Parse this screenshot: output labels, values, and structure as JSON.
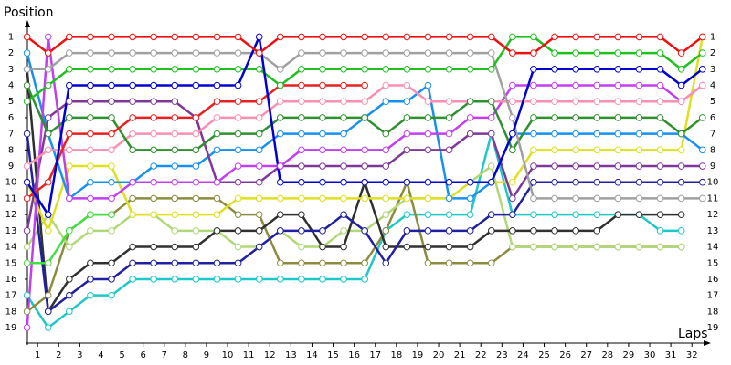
{
  "chart_data": {
    "type": "line",
    "y_label": "Position",
    "x_label": "Laps",
    "x": [
      0,
      1,
      2,
      3,
      4,
      5,
      6,
      7,
      8,
      9,
      10,
      11,
      12,
      13,
      14,
      15,
      16,
      17,
      18,
      19,
      20,
      21,
      22,
      23,
      24,
      25,
      26,
      27,
      28,
      29,
      30,
      31,
      32
    ],
    "xlim": [
      -0.2,
      32.4
    ],
    "ylim": [
      0.3,
      19.9
    ],
    "y_inverted": true,
    "xticks": [
      {
        "value": 0.5,
        "label": "1"
      },
      {
        "value": 1.5,
        "label": "2"
      },
      {
        "value": 2.5,
        "label": "3"
      },
      {
        "value": 3.5,
        "label": "4"
      },
      {
        "value": 4.5,
        "label": "5"
      },
      {
        "value": 5.5,
        "label": "6"
      },
      {
        "value": 6.5,
        "label": "7"
      },
      {
        "value": 7.5,
        "label": "8"
      },
      {
        "value": 8.5,
        "label": "9"
      },
      {
        "value": 9.5,
        "label": "10"
      },
      {
        "value": 10.5,
        "label": "11"
      },
      {
        "value": 11.5,
        "label": "12"
      },
      {
        "value": 12.5,
        "label": "13"
      },
      {
        "value": 13.5,
        "label": "14"
      },
      {
        "value": 14.5,
        "label": "15"
      },
      {
        "value": 15.5,
        "label": "16"
      },
      {
        "value": 16.5,
        "label": "17"
      },
      {
        "value": 17.5,
        "label": "18"
      },
      {
        "value": 18.5,
        "label": "19"
      },
      {
        "value": 19.5,
        "label": "20"
      },
      {
        "value": 20.5,
        "label": "21"
      },
      {
        "value": 21.5,
        "label": "22"
      },
      {
        "value": 22.5,
        "label": "23"
      },
      {
        "value": 23.5,
        "label": "24"
      },
      {
        "value": 24.5,
        "label": "25"
      },
      {
        "value": 25.5,
        "label": "26"
      },
      {
        "value": 26.5,
        "label": "27"
      },
      {
        "value": 27.5,
        "label": "28"
      },
      {
        "value": 28.5,
        "label": "29"
      },
      {
        "value": 29.5,
        "label": "30"
      },
      {
        "value": 30.5,
        "label": "31"
      },
      {
        "value": 31.5,
        "label": "32"
      }
    ],
    "yticks": [
      1,
      2,
      3,
      4,
      5,
      6,
      7,
      8,
      9,
      10,
      11,
      12,
      13,
      14,
      15,
      16,
      17,
      18,
      19
    ],
    "series": [
      {
        "color": "#1fc8c8",
        "values": [
          17,
          19,
          18,
          17,
          17,
          16,
          16,
          16,
          16,
          16,
          16,
          16,
          16,
          16,
          16,
          16,
          16,
          13,
          12,
          12,
          12,
          12,
          7,
          12,
          12,
          12,
          12,
          12,
          12,
          12,
          13,
          13,
          null
        ]
      },
      {
        "color": "#8c8c40",
        "values": [
          18,
          17,
          13,
          12,
          12,
          11,
          11,
          11,
          11,
          11,
          12,
          12,
          15,
          15,
          15,
          15,
          15,
          13,
          10,
          15,
          15,
          15,
          15,
          14,
          14,
          14,
          14,
          14,
          14,
          14,
          14,
          14,
          null
        ]
      },
      {
        "color": "#b0d878",
        "values": [
          14,
          12,
          14,
          13,
          13,
          12,
          12,
          13,
          13,
          13,
          14,
          14,
          13,
          14,
          14,
          13,
          13,
          12,
          11,
          11,
          11,
          10,
          9,
          14,
          14,
          14,
          14,
          14,
          14,
          14,
          14,
          14,
          null
        ]
      },
      {
        "color": "#303030",
        "values": [
          3,
          18,
          16,
          15,
          15,
          14,
          14,
          14,
          14,
          13,
          13,
          13,
          12,
          12,
          14,
          14,
          10,
          14,
          14,
          14,
          14,
          14,
          13,
          13,
          13,
          13,
          13,
          13,
          12,
          12,
          12,
          12,
          null
        ]
      },
      {
        "color": "#2020a0",
        "values": [
          7,
          18,
          17,
          16,
          16,
          15,
          15,
          15,
          15,
          15,
          15,
          14,
          13,
          13,
          13,
          12,
          13,
          15,
          13,
          13,
          13,
          13,
          12,
          12,
          10,
          10,
          10,
          10,
          10,
          10,
          10,
          10,
          10
        ]
      },
      {
        "color": "#e0e020",
        "values": [
          10,
          13,
          9,
          9,
          9,
          12,
          12,
          12,
          12,
          12,
          11,
          11,
          11,
          11,
          11,
          11,
          11,
          11,
          11,
          11,
          11,
          10,
          10,
          10,
          8,
          8,
          8,
          8,
          8,
          8,
          8,
          8,
          1
        ]
      },
      {
        "color": "#1890f0",
        "values": [
          2,
          7,
          11,
          10,
          10,
          10,
          9,
          9,
          9,
          8,
          8,
          8,
          7,
          7,
          7,
          7,
          6,
          5,
          5,
          4,
          11,
          11,
          10,
          7,
          7,
          7,
          7,
          7,
          7,
          7,
          7,
          7,
          8
        ]
      },
      {
        "color": "#803898",
        "values": [
          13,
          6,
          5,
          5,
          5,
          5,
          5,
          5,
          6,
          10,
          10,
          10,
          9,
          9,
          9,
          9,
          9,
          9,
          8,
          8,
          8,
          7,
          7,
          11,
          9,
          9,
          9,
          9,
          9,
          9,
          9,
          9,
          9
        ]
      },
      {
        "color": "#c040f0",
        "values": [
          19,
          1,
          11,
          11,
          11,
          10,
          10,
          10,
          10,
          10,
          9,
          9,
          9,
          8,
          8,
          8,
          8,
          8,
          7,
          7,
          7,
          6,
          6,
          4,
          4,
          4,
          4,
          4,
          4,
          4,
          4,
          5,
          4
        ]
      },
      {
        "color": "#f890b0",
        "values": [
          9,
          8,
          8,
          8,
          8,
          7,
          7,
          7,
          7,
          6,
          6,
          6,
          5,
          5,
          5,
          5,
          5,
          4,
          4,
          5,
          5,
          5,
          5,
          5,
          5,
          5,
          5,
          5,
          5,
          5,
          5,
          5,
          4
        ]
      },
      {
        "color": "#309030",
        "values": [
          4,
          7,
          6,
          6,
          6,
          8,
          8,
          8,
          8,
          7,
          7,
          7,
          6,
          6,
          6,
          6,
          6,
          7,
          6,
          6,
          6,
          5,
          5,
          8,
          6,
          6,
          6,
          6,
          6,
          6,
          6,
          7,
          6
        ]
      },
      {
        "color": "#40e040",
        "values": [
          15,
          15,
          13,
          12,
          12,
          null,
          null,
          null,
          null,
          null,
          null,
          null,
          null,
          null,
          null,
          null,
          null,
          null,
          null,
          null,
          null,
          null,
          null,
          null,
          null,
          null,
          null,
          null,
          null,
          null,
          null,
          null,
          null
        ]
      },
      {
        "color": "#e82020",
        "values": [
          11,
          10,
          7,
          7,
          7,
          6,
          6,
          6,
          6,
          5,
          5,
          5,
          4,
          4,
          4,
          4,
          4,
          null,
          null,
          null,
          null,
          null,
          null,
          null,
          null,
          null,
          null,
          null,
          null,
          null,
          null,
          null,
          null
        ]
      },
      {
        "color": "#a0a0a0",
        "values": [
          3,
          3,
          2,
          2,
          2,
          2,
          2,
          2,
          2,
          2,
          2,
          2,
          3,
          2,
          2,
          2,
          2,
          2,
          2,
          2,
          2,
          2,
          2,
          6,
          11,
          11,
          11,
          11,
          11,
          11,
          11,
          11,
          11
        ]
      },
      {
        "color": "#20c020",
        "values": [
          5,
          4,
          3,
          3,
          3,
          3,
          3,
          3,
          3,
          3,
          3,
          3,
          4,
          3,
          3,
          3,
          3,
          3,
          3,
          3,
          3,
          3,
          3,
          1,
          1,
          2,
          2,
          2,
          2,
          2,
          2,
          3,
          2
        ]
      },
      {
        "color": "#0000d0",
        "values": [
          10,
          12,
          4,
          4,
          4,
          4,
          4,
          4,
          4,
          4,
          4,
          1,
          10,
          10,
          10,
          10,
          10,
          10,
          10,
          10,
          10,
          10,
          10,
          7,
          3,
          3,
          3,
          3,
          3,
          3,
          3,
          4,
          3
        ]
      },
      {
        "color": "#ee1010",
        "values": [
          1,
          2,
          1,
          1,
          1,
          1,
          1,
          1,
          1,
          1,
          1,
          2,
          1,
          1,
          1,
          1,
          1,
          1,
          1,
          1,
          1,
          1,
          1,
          2,
          2,
          1,
          1,
          1,
          1,
          1,
          1,
          2,
          1
        ]
      }
    ]
  }
}
